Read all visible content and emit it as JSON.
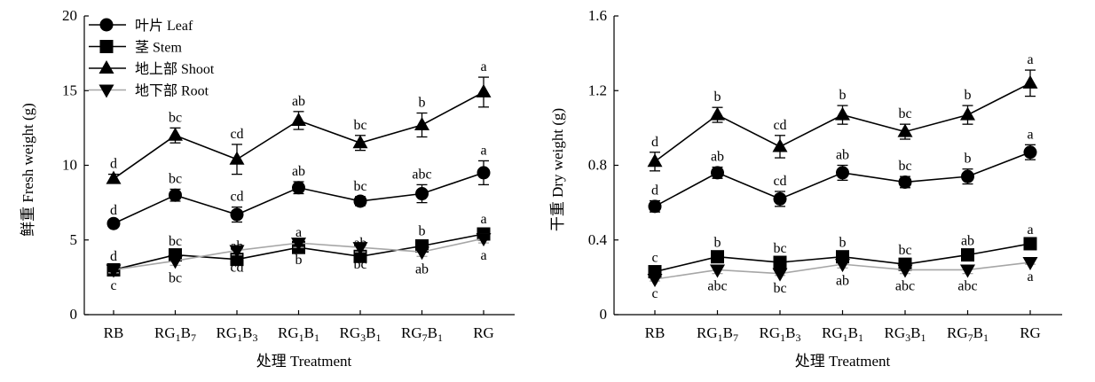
{
  "chart_data": [
    {
      "type": "line",
      "xlabel": "处理 Treatment",
      "ylabel": "鲜重 Fresh weight (g)",
      "ylim": [
        0,
        20
      ],
      "yticks": [
        0,
        5,
        10,
        15,
        20
      ],
      "ytick_labels": [
        "0",
        "5",
        "10",
        "15",
        "20"
      ],
      "categories": [
        {
          "base": "RB",
          "parts": [
            [
              "RB",
              ""
            ]
          ]
        },
        {
          "base": "RG1B7",
          "parts": [
            [
              "RG",
              ""
            ],
            [
              "1",
              "sub"
            ],
            [
              "B",
              ""
            ],
            [
              "7",
              "sub"
            ]
          ]
        },
        {
          "base": "RG1B3",
          "parts": [
            [
              "RG",
              ""
            ],
            [
              "1",
              "sub"
            ],
            [
              "B",
              ""
            ],
            [
              "3",
              "sub"
            ]
          ]
        },
        {
          "base": "RG1B1",
          "parts": [
            [
              "RG",
              ""
            ],
            [
              "1",
              "sub"
            ],
            [
              "B",
              ""
            ],
            [
              "1",
              "sub"
            ]
          ]
        },
        {
          "base": "RG3B1",
          "parts": [
            [
              "RG",
              ""
            ],
            [
              "3",
              "sub"
            ],
            [
              "B",
              ""
            ],
            [
              "1",
              "sub"
            ]
          ]
        },
        {
          "base": "RG7B1",
          "parts": [
            [
              "RG",
              ""
            ],
            [
              "7",
              "sub"
            ],
            [
              "B",
              ""
            ],
            [
              "1",
              "sub"
            ]
          ]
        },
        {
          "base": "RG",
          "parts": [
            [
              "RG",
              ""
            ]
          ]
        }
      ],
      "legend": {
        "placement": "top-left"
      },
      "series": [
        {
          "name": "叶片 Leaf",
          "marker": "circle",
          "color": "#000000",
          "values": [
            6.1,
            8.0,
            6.7,
            8.5,
            7.6,
            8.1,
            9.5
          ],
          "errors": [
            0.2,
            0.4,
            0.5,
            0.4,
            0.3,
            0.6,
            0.8
          ],
          "letters": [
            "d",
            "bc",
            "cd",
            "ab",
            "bc",
            "abc",
            "a"
          ],
          "letter_pos": "above"
        },
        {
          "name": "茎 Stem",
          "marker": "square",
          "color": "#000000",
          "values": [
            3.0,
            4.0,
            3.7,
            4.5,
            3.9,
            4.6,
            5.4
          ],
          "errors": [
            0.2,
            0.2,
            0.2,
            0.3,
            0.2,
            0.3,
            0.3
          ],
          "letters": [
            "d",
            "bc",
            "ab",
            "a",
            "ab",
            "b",
            "a"
          ],
          "letter_pos": "above"
        },
        {
          "name": "地上部 Shoot",
          "marker": "triangle-up",
          "color": "#000000",
          "values": [
            9.1,
            12.0,
            10.4,
            13.0,
            11.5,
            12.7,
            14.9
          ],
          "errors": [
            0.3,
            0.5,
            1.0,
            0.6,
            0.5,
            0.8,
            1.0
          ],
          "letters": [
            "d",
            "bc",
            "cd",
            "ab",
            "bc",
            "b",
            "a"
          ],
          "letter_pos": "above"
        },
        {
          "name": "地下部 Root",
          "marker": "triangle-down",
          "color": "#a6a6a6",
          "values": [
            3.0,
            3.6,
            4.3,
            4.8,
            4.5,
            4.2,
            5.1
          ],
          "errors": [
            0.2,
            0.3,
            0.3,
            0.3,
            0.3,
            0.3,
            0.3
          ],
          "letters": [
            "c",
            "bc",
            "cd",
            "b",
            "bc",
            "ab",
            "a"
          ],
          "letter_pos": "below"
        }
      ]
    },
    {
      "type": "line",
      "xlabel": "处理 Treatment",
      "ylabel": "干重 Dry weight (g)",
      "ylim": [
        0,
        1.6
      ],
      "yticks": [
        0,
        0.4,
        0.8,
        1.2,
        1.6
      ],
      "ytick_labels": [
        "0",
        "0.4",
        "0.8",
        "1.2",
        "1.6"
      ],
      "categories": [
        {
          "base": "RB",
          "parts": [
            [
              "RB",
              ""
            ]
          ]
        },
        {
          "base": "RG1B7",
          "parts": [
            [
              "RG",
              ""
            ],
            [
              "1",
              "sub"
            ],
            [
              "B",
              ""
            ],
            [
              "7",
              "sub"
            ]
          ]
        },
        {
          "base": "RG1B3",
          "parts": [
            [
              "RG",
              ""
            ],
            [
              "1",
              "sub"
            ],
            [
              "B",
              ""
            ],
            [
              "3",
              "sub"
            ]
          ]
        },
        {
          "base": "RG1B1",
          "parts": [
            [
              "RG",
              ""
            ],
            [
              "1",
              "sub"
            ],
            [
              "B",
              ""
            ],
            [
              "1",
              "sub"
            ]
          ]
        },
        {
          "base": "RG3B1",
          "parts": [
            [
              "RG",
              ""
            ],
            [
              "3",
              "sub"
            ],
            [
              "B",
              ""
            ],
            [
              "1",
              "sub"
            ]
          ]
        },
        {
          "base": "RG7B1",
          "parts": [
            [
              "RG",
              ""
            ],
            [
              "7",
              "sub"
            ],
            [
              "B",
              ""
            ],
            [
              "1",
              "sub"
            ]
          ]
        },
        {
          "base": "RG",
          "parts": [
            [
              "RG",
              ""
            ]
          ]
        }
      ],
      "series": [
        {
          "name": "叶片 Leaf",
          "marker": "circle",
          "color": "#000000",
          "values": [
            0.58,
            0.76,
            0.62,
            0.76,
            0.71,
            0.74,
            0.87
          ],
          "errors": [
            0.03,
            0.03,
            0.04,
            0.04,
            0.03,
            0.04,
            0.04
          ],
          "letters": [
            "d",
            "ab",
            "cd",
            "ab",
            "bc",
            "b",
            "a"
          ],
          "letter_pos": "above"
        },
        {
          "name": "茎 Stem",
          "marker": "square",
          "color": "#000000",
          "values": [
            0.23,
            0.31,
            0.28,
            0.31,
            0.27,
            0.32,
            0.38
          ],
          "errors": [
            0.02,
            0.02,
            0.02,
            0.02,
            0.02,
            0.02,
            0.02
          ],
          "letters": [
            "c",
            "b",
            "bc",
            "b",
            "bc",
            "ab",
            "a"
          ],
          "letter_pos": "above"
        },
        {
          "name": "地上部 Shoot",
          "marker": "triangle-up",
          "color": "#000000",
          "values": [
            0.82,
            1.07,
            0.9,
            1.07,
            0.98,
            1.07,
            1.24
          ],
          "errors": [
            0.05,
            0.04,
            0.06,
            0.05,
            0.04,
            0.05,
            0.07
          ],
          "letters": [
            "d",
            "b",
            "cd",
            "b",
            "bc",
            "b",
            "a"
          ],
          "letter_pos": "above"
        },
        {
          "name": "地下部 Root",
          "marker": "triangle-down",
          "color": "#a6a6a6",
          "values": [
            0.19,
            0.24,
            0.22,
            0.27,
            0.24,
            0.24,
            0.28
          ],
          "errors": [
            0.01,
            0.02,
            0.01,
            0.02,
            0.02,
            0.02,
            0.01
          ],
          "letters": [
            "c",
            "abc",
            "bc",
            "ab",
            "abc",
            "abc",
            "a"
          ],
          "letter_pos": "below"
        }
      ]
    }
  ]
}
